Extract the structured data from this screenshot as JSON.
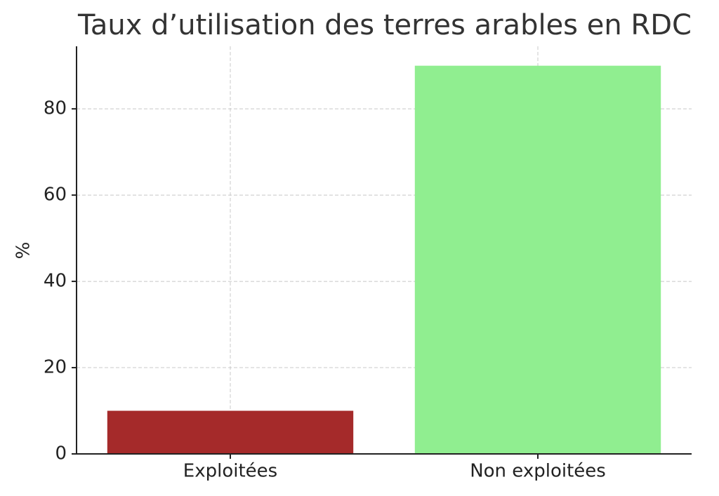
{
  "chart_data": {
    "type": "bar",
    "title": "Taux d’utilisation des terres arables en RDC",
    "y_label": "%",
    "categories": [
      "Exploitées",
      "Non exploitées"
    ],
    "values": [
      10,
      90
    ],
    "colors": [
      "#a52a2a",
      "#90ee90"
    ],
    "ylim": [
      0,
      94.5
    ],
    "yticks": [
      0,
      20,
      40,
      60,
      80
    ],
    "grid": true
  }
}
